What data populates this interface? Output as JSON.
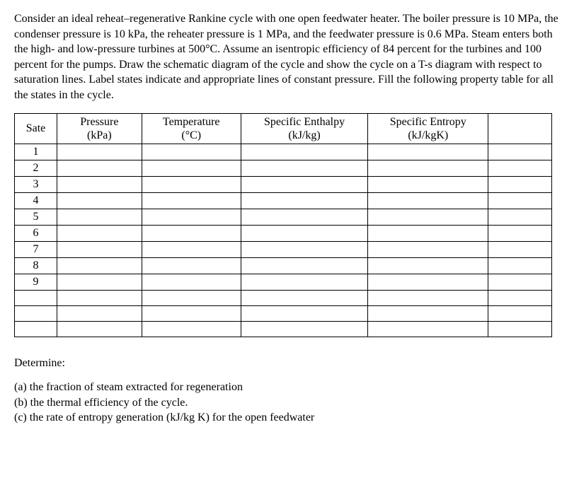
{
  "problem": {
    "text": "Consider an ideal reheat–regenerative Rankine cycle with one open feedwater heater. The boiler pressure is 10 MPa, the condenser pressure is 10 kPa, the reheater pressure is 1 MPa, and the feedwater pressure is 0.6 MPa. Steam enters both the high- and low-pressure turbines at 500°C. Assume an isentropic efficiency of 84 percent for the turbines and 100 percent for the pumps. Draw the schematic diagram of the cycle and show the cycle on a T-s diagram with respect to saturation lines. Label states indicate and appropriate lines of constant pressure. Fill the following property table for all the states in the cycle."
  },
  "table": {
    "headers": {
      "state": "Sate",
      "pressure": "Pressure",
      "pressure_unit": "(kPa)",
      "temperature": "Temperature",
      "temperature_unit": "(°C)",
      "enthalpy": "Specific Enthalpy",
      "enthalpy_unit": "(kJ/kg)",
      "entropy": "Specific Entropy",
      "entropy_unit": "(kJ/kgK)"
    },
    "rows": [
      {
        "state": "1",
        "pressure": "",
        "temperature": "",
        "enthalpy": "",
        "entropy": ""
      },
      {
        "state": "2",
        "pressure": "",
        "temperature": "",
        "enthalpy": "",
        "entropy": ""
      },
      {
        "state": "3",
        "pressure": "",
        "temperature": "",
        "enthalpy": "",
        "entropy": ""
      },
      {
        "state": "4",
        "pressure": "",
        "temperature": "",
        "enthalpy": "",
        "entropy": ""
      },
      {
        "state": "5",
        "pressure": "",
        "temperature": "",
        "enthalpy": "",
        "entropy": ""
      },
      {
        "state": "6",
        "pressure": "",
        "temperature": "",
        "enthalpy": "",
        "entropy": ""
      },
      {
        "state": "7",
        "pressure": "",
        "temperature": "",
        "enthalpy": "",
        "entropy": ""
      },
      {
        "state": "8",
        "pressure": "",
        "temperature": "",
        "enthalpy": "",
        "entropy": ""
      },
      {
        "state": "9",
        "pressure": "",
        "temperature": "",
        "enthalpy": "",
        "entropy": ""
      },
      {
        "state": "",
        "pressure": "",
        "temperature": "",
        "enthalpy": "",
        "entropy": ""
      },
      {
        "state": "",
        "pressure": "",
        "temperature": "",
        "enthalpy": "",
        "entropy": ""
      },
      {
        "state": "",
        "pressure": "",
        "temperature": "",
        "enthalpy": "",
        "entropy": ""
      }
    ],
    "columns": [
      "state",
      "pressure",
      "temperature",
      "enthalpy",
      "entropy",
      "end"
    ],
    "border_color": "#000000",
    "background_color": "#ffffff",
    "font_size": 16
  },
  "determine": {
    "label": "Determine:",
    "items": [
      "(a) the fraction of steam extracted for regeneration",
      "(b) the thermal efficiency of the cycle.",
      "(c) the rate of entropy generation (kJ/kg K) for the open feedwater"
    ]
  }
}
